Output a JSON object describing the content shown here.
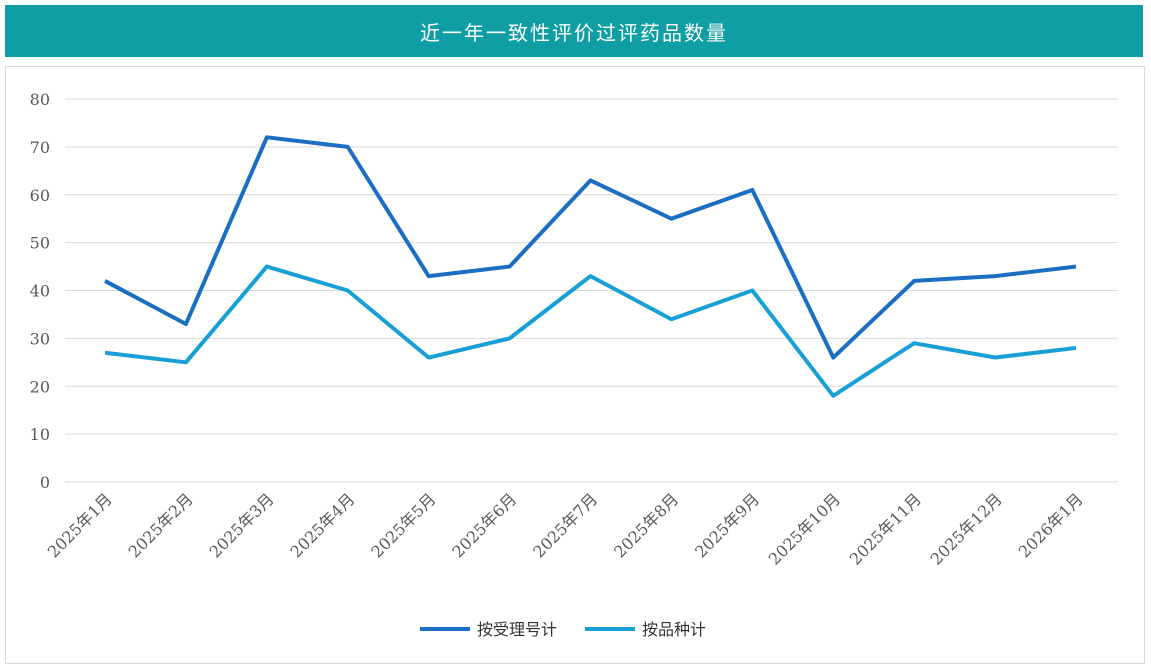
{
  "chart_data": {
    "type": "line",
    "title": "近一年一致性评价过评药品数量",
    "xlabel": "",
    "ylabel": "",
    "ylim": [
      0,
      80
    ],
    "yticks": [
      0,
      10,
      20,
      30,
      40,
      50,
      60,
      70,
      80
    ],
    "grid": true,
    "legend_position": "bottom",
    "categories": [
      "2025年1月",
      "2025年2月",
      "2025年3月",
      "2025年4月",
      "2025年5月",
      "2025年6月",
      "2025年7月",
      "2025年8月",
      "2025年9月",
      "2025年10月",
      "2025年11月",
      "2025年12月",
      "2026年1月"
    ],
    "series": [
      {
        "name": "按受理号计",
        "color": "#1b6ec2",
        "values": [
          42,
          33,
          72,
          70,
          43,
          45,
          63,
          55,
          61,
          26,
          42,
          43,
          45
        ]
      },
      {
        "name": "按品种计",
        "color": "#18a0d6",
        "values": [
          27,
          25,
          45,
          40,
          26,
          30,
          43,
          34,
          40,
          18,
          29,
          26,
          28
        ]
      }
    ]
  }
}
